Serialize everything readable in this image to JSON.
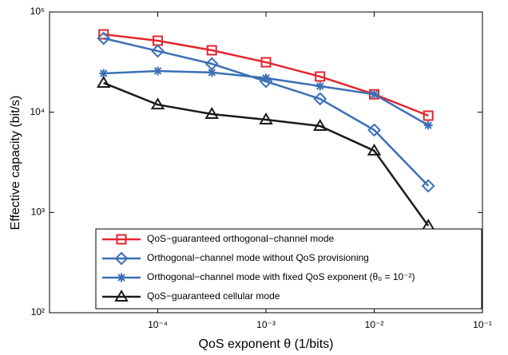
{
  "chart_data": {
    "type": "line",
    "xlabel": "QoS exponent θ (1/bits)",
    "ylabel": "Effective capacity (bit/s)",
    "x_log": true,
    "y_log": true,
    "grid": false,
    "legend": "lower left",
    "x": [
      3.16e-05,
      0.0001,
      0.000316,
      0.001,
      0.00316,
      0.01,
      0.0316
    ],
    "xlim": [
      1e-05,
      0.1
    ],
    "xticks": [
      {
        "value": 0.0001,
        "label": "10⁻⁴"
      },
      {
        "value": 0.001,
        "label": "10⁻³"
      },
      {
        "value": 0.01,
        "label": "10⁻²"
      },
      {
        "value": 0.1,
        "label": "10⁻¹"
      }
    ],
    "ylim": [
      100,
      100000
    ],
    "yticks": [
      {
        "value": 100,
        "label": "10²"
      },
      {
        "value": 1000,
        "label": "10³"
      },
      {
        "value": 10000,
        "label": "10⁴"
      },
      {
        "value": 100000,
        "label": "10⁵"
      }
    ],
    "series": [
      {
        "name": "QoS−guaranteed orthogonal−channel mode",
        "color": "#e3262d",
        "marker": "square",
        "values": [
          59800,
          51700,
          41500,
          31500,
          22700,
          15100,
          9240
        ]
      },
      {
        "name": "Orthogonal−channel mode without QoS provisioning",
        "color": "#3b6fb6",
        "marker": "diamond",
        "values": [
          54600,
          40800,
          30400,
          20300,
          13600,
          6640,
          1840
        ]
      },
      {
        "name": "Orthogonal−channel mode with fixed QoS exponent (θ₀ = 10⁻²)",
        "color": "#3b6fb6",
        "marker": "asterisk",
        "values": [
          24400,
          25800,
          24900,
          21900,
          18200,
          15100,
          7410
        ]
      },
      {
        "name": "QoS−guaranteed cellular mode",
        "color": "#1a1a1a",
        "marker": "triangle",
        "values": [
          19600,
          11900,
          9580,
          8430,
          7280,
          4130,
          736
        ]
      }
    ]
  }
}
